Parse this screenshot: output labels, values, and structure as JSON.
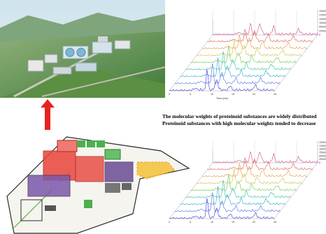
{
  "caption": {
    "line1": "The molecular weights of proteinoid substances are widely distributed",
    "line2": "Proteinoid substances with high molecular weights tended to decrease"
  },
  "colors": {
    "arrow": "#e52420",
    "site_boundary": "#2b2b2b",
    "zone_red": "#e8453c",
    "zone_green": "#4caf50",
    "zone_purple": "#6a4c93",
    "zone_yellow": "#f4c542"
  },
  "chart_data": [
    {
      "type": "line",
      "style": "3d-waterfall",
      "x_ticks": [
        "0",
        "5",
        "10",
        "15",
        "20",
        "25"
      ],
      "xlabel": "Time (min)",
      "y_ticks": [
        "0",
        "25000",
        "50000",
        "75000",
        "100000",
        "125000",
        "150000"
      ],
      "series_count": 9,
      "series_colors": [
        "#3a3ad6",
        "#4b6fe0",
        "#2f9fd6",
        "#2fbf9f",
        "#6cc24a",
        "#c9c23a",
        "#e99a3a",
        "#e2563f",
        "#d04a8a"
      ]
    },
    {
      "type": "line",
      "style": "3d-waterfall",
      "x_ticks": [
        "0",
        "5",
        "10",
        "15",
        "20",
        "25"
      ],
      "xlabel": "",
      "y_ticks": [
        "0",
        "25000",
        "50000",
        "75000",
        "100000",
        "125000",
        "150000"
      ],
      "series_count": 9,
      "series_colors": [
        "#3a3ad6",
        "#4b6fe0",
        "#2f9fd6",
        "#2fbf9f",
        "#6cc24a",
        "#c9c23a",
        "#e99a3a",
        "#e2563f",
        "#d04a8a"
      ]
    }
  ]
}
